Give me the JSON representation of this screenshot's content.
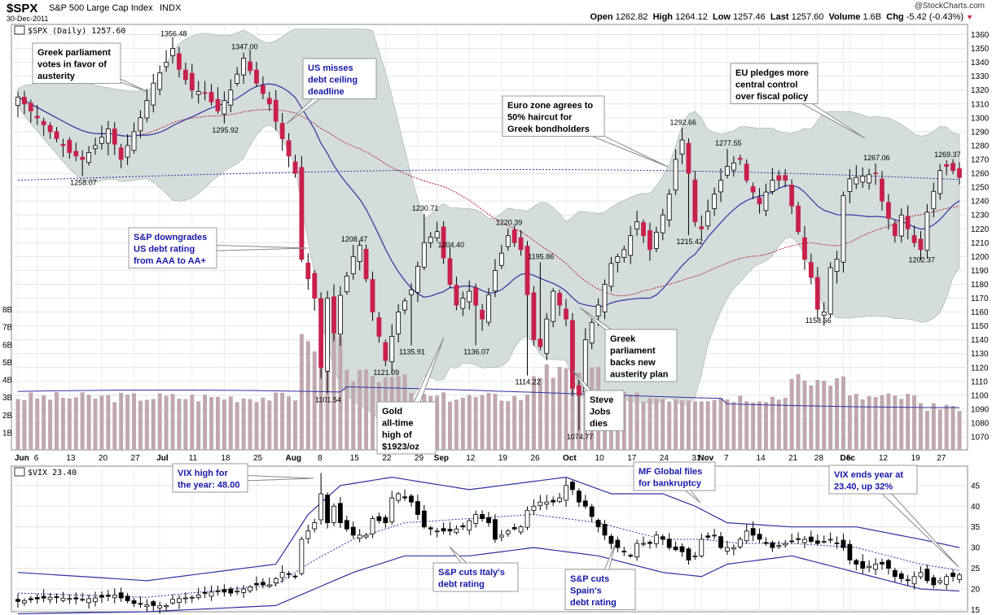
{
  "header": {
    "symbol": "$SPX",
    "name": "S&P 500 Large Cap Index",
    "exchange": "INDX",
    "date": "30-Dec-2011",
    "watermark": "@StockCharts.com",
    "ohlc": [
      {
        "label": "Open",
        "value": "1262.82"
      },
      {
        "label": "High",
        "value": "1264.12"
      },
      {
        "label": "Low",
        "value": "1257.46"
      },
      {
        "label": "Last",
        "value": "1257.60"
      },
      {
        "label": "Volume",
        "value": "1.6B"
      },
      {
        "label": "Chg",
        "value": "-5.42 (-0.43%)"
      }
    ]
  },
  "panels": {
    "spx_legend": "$SPX (Daily) 1257.60",
    "vix_legend": "$VIX 23.40"
  },
  "colors": {
    "up_candle": "#ffffff",
    "down_candle": "#c8204a",
    "vix_down": "#000000",
    "band_fill": "#d5dcdc",
    "ma_blue": "#3030a0",
    "ma_red": "#b02030",
    "volume_bar": "#c0a8ae",
    "annotation_blue": "#1818a8"
  },
  "chart_data": [
    {
      "type": "candlestick",
      "series_name": "$SPX (Daily)",
      "ylim": [
        1063,
        1365
      ],
      "y_ticks": [
        1070,
        1080,
        1090,
        1100,
        1110,
        1120,
        1130,
        1140,
        1150,
        1160,
        1170,
        1180,
        1190,
        1200,
        1210,
        1220,
        1230,
        1240,
        1250,
        1260,
        1270,
        1280,
        1290,
        1300,
        1310,
        1320,
        1330,
        1340,
        1350,
        1360
      ],
      "x_labels": [
        {
          "label": "Jun",
          "day": 0
        },
        {
          "label": "6",
          "day": 3
        },
        {
          "label": "13",
          "day": 8
        },
        {
          "label": "20",
          "day": 13
        },
        {
          "label": "27",
          "day": 18
        },
        {
          "label": "Jul",
          "day": 22
        },
        {
          "label": "11",
          "day": 27
        },
        {
          "label": "18",
          "day": 32
        },
        {
          "label": "25",
          "day": 37
        },
        {
          "label": "Aug",
          "day": 42
        },
        {
          "label": "8",
          "day": 47
        },
        {
          "label": "15",
          "day": 52
        },
        {
          "label": "22",
          "day": 57
        },
        {
          "label": "29",
          "day": 62
        },
        {
          "label": "Sep",
          "day": 65
        },
        {
          "label": "12",
          "day": 70
        },
        {
          "label": "19",
          "day": 75
        },
        {
          "label": "26",
          "day": 80
        },
        {
          "label": "Oct",
          "day": 85
        },
        {
          "label": "10",
          "day": 90
        },
        {
          "label": "17",
          "day": 95
        },
        {
          "label": "24",
          "day": 100
        },
        {
          "label": "31",
          "day": 105
        },
        {
          "label": "Nov",
          "day": 106
        },
        {
          "label": "7",
          "day": 110
        },
        {
          "label": "14",
          "day": 115
        },
        {
          "label": "21",
          "day": 120
        },
        {
          "label": "28",
          "day": 124
        },
        {
          "label": "Dec",
          "day": 128
        },
        {
          "label": "5",
          "day": 129
        },
        {
          "label": "12",
          "day": 134
        },
        {
          "label": "19",
          "day": 139
        },
        {
          "label": "27",
          "day": 143
        }
      ],
      "close_anchors": [
        [
          0,
          1315
        ],
        [
          2,
          1305
        ],
        [
          5,
          1290
        ],
        [
          8,
          1275
        ],
        [
          10,
          1270
        ],
        [
          12,
          1280
        ],
        [
          14,
          1292
        ],
        [
          16,
          1270
        ],
        [
          19,
          1300
        ],
        [
          21,
          1325
        ],
        [
          23,
          1340
        ],
        [
          24,
          1350
        ],
        [
          25,
          1335
        ],
        [
          27,
          1320
        ],
        [
          29,
          1318
        ],
        [
          31,
          1305
        ],
        [
          33,
          1320
        ],
        [
          35,
          1343
        ],
        [
          37,
          1325
        ],
        [
          39,
          1310
        ],
        [
          41,
          1285
        ],
        [
          43,
          1260
        ],
        [
          44,
          1198
        ],
        [
          46,
          1170
        ],
        [
          47,
          1120
        ],
        [
          48,
          1170
        ],
        [
          49,
          1145
        ],
        [
          50,
          1172
        ],
        [
          52,
          1200
        ],
        [
          53,
          1208
        ],
        [
          55,
          1160
        ],
        [
          57,
          1125
        ],
        [
          59,
          1160
        ],
        [
          61,
          1176
        ],
        [
          63,
          1210
        ],
        [
          65,
          1218
        ],
        [
          67,
          1180
        ],
        [
          68,
          1165
        ],
        [
          70,
          1175
        ],
        [
          72,
          1155
        ],
        [
          74,
          1190
        ],
        [
          76,
          1215
        ],
        [
          78,
          1205
        ],
        [
          80,
          1140
        ],
        [
          81,
          1135
        ],
        [
          83,
          1175
        ],
        [
          85,
          1155
        ],
        [
          86,
          1105
        ],
        [
          87,
          1100
        ],
        [
          88,
          1140
        ],
        [
          90,
          1165
        ],
        [
          92,
          1195
        ],
        [
          94,
          1205
        ],
        [
          96,
          1225
        ],
        [
          98,
          1205
        ],
        [
          100,
          1230
        ],
        [
          101,
          1245
        ],
        [
          102,
          1270
        ],
        [
          103,
          1284
        ],
        [
          104,
          1260
        ],
        [
          105,
          1225
        ],
        [
          106,
          1220
        ],
        [
          108,
          1245
        ],
        [
          110,
          1265
        ],
        [
          112,
          1270
        ],
        [
          113,
          1255
        ],
        [
          115,
          1238
        ],
        [
          117,
          1255
        ],
        [
          119,
          1255
        ],
        [
          121,
          1218
        ],
        [
          122,
          1198
        ],
        [
          123,
          1185
        ],
        [
          124,
          1162
        ],
        [
          125,
          1160
        ],
        [
          126,
          1192
        ],
        [
          127,
          1198
        ],
        [
          128,
          1244
        ],
        [
          129,
          1256
        ],
        [
          131,
          1258
        ],
        [
          133,
          1260
        ],
        [
          134,
          1240
        ],
        [
          136,
          1215
        ],
        [
          137,
          1230
        ],
        [
          139,
          1210
        ],
        [
          140,
          1205
        ],
        [
          141,
          1232
        ],
        [
          143,
          1262
        ],
        [
          144,
          1265
        ],
        [
          145,
          1262
        ],
        [
          146,
          1257
        ]
      ],
      "price_labels": [
        {
          "text": "1356.48",
          "day": 24,
          "value": 1356.48,
          "pos": "above"
        },
        {
          "text": "1347.00",
          "day": 35,
          "value": 1347,
          "pos": "above"
        },
        {
          "text": "1295.92",
          "day": 32,
          "value": 1295.92,
          "pos": "below"
        },
        {
          "text": "1258.07",
          "day": 10,
          "value": 1258.07,
          "pos": "below"
        },
        {
          "text": "1208.47",
          "day": 52,
          "value": 1208.47,
          "pos": "above"
        },
        {
          "text": "1101.54",
          "day": 48,
          "value": 1101.54,
          "pos": "below"
        },
        {
          "text": "1121.09",
          "day": 57,
          "value": 1121.09,
          "pos": "below"
        },
        {
          "text": "1135.91",
          "day": 61,
          "value": 1135.91,
          "pos": "below"
        },
        {
          "text": "1230.71",
          "day": 63,
          "value": 1230.71,
          "pos": "above"
        },
        {
          "text": "1204.40",
          "day": 67,
          "value": 1204.4,
          "pos": "above"
        },
        {
          "text": "1136.07",
          "day": 71,
          "value": 1136.07,
          "pos": "below"
        },
        {
          "text": "1220.39",
          "day": 76,
          "value": 1220.39,
          "pos": "above"
        },
        {
          "text": "1195.86",
          "day": 81,
          "value": 1195.86,
          "pos": "above"
        },
        {
          "text": "1114.22",
          "day": 79,
          "value": 1114.22,
          "pos": "below"
        },
        {
          "text": "1074.77",
          "day": 87,
          "value": 1074.77,
          "pos": "below"
        },
        {
          "text": "1292.66",
          "day": 103,
          "value": 1292.66,
          "pos": "above"
        },
        {
          "text": "1215.42",
          "day": 104,
          "value": 1215.42,
          "pos": "below"
        },
        {
          "text": "1277.55",
          "day": 110,
          "value": 1277.55,
          "pos": "above"
        },
        {
          "text": "1158.66",
          "day": 124,
          "value": 1158.66,
          "pos": "below"
        },
        {
          "text": "1267.06",
          "day": 133,
          "value": 1267.06,
          "pos": "above"
        },
        {
          "text": "1202.37",
          "day": 140,
          "value": 1202.37,
          "pos": "below"
        },
        {
          "text": "1269.37",
          "day": 144,
          "value": 1269.37,
          "pos": "above"
        }
      ],
      "volume_axis": {
        "ticks": [
          "1B",
          "2B",
          "3B",
          "4B",
          "5B",
          "6B",
          "7B",
          "8B"
        ]
      }
    },
    {
      "type": "candlestick",
      "series_name": "$VIX",
      "ylim": [
        14.5,
        48.5
      ],
      "y_ticks": [
        15,
        20,
        25,
        30,
        35,
        40,
        45
      ],
      "close_anchors": [
        [
          0,
          17
        ],
        [
          5,
          18
        ],
        [
          10,
          17.5
        ],
        [
          13,
          18
        ],
        [
          15,
          18.5
        ],
        [
          18,
          16.5
        ],
        [
          21,
          16
        ],
        [
          23,
          16
        ],
        [
          24,
          17.5
        ],
        [
          27,
          18
        ],
        [
          29,
          19
        ],
        [
          31,
          19.5
        ],
        [
          33,
          19
        ],
        [
          35,
          20
        ],
        [
          37,
          21
        ],
        [
          39,
          21
        ],
        [
          41,
          24
        ],
        [
          43,
          23
        ],
        [
          44,
          32
        ],
        [
          46,
          36
        ],
        [
          47,
          43
        ],
        [
          48,
          36
        ],
        [
          49,
          40
        ],
        [
          50,
          36
        ],
        [
          52,
          33
        ],
        [
          54,
          33
        ],
        [
          55,
          37
        ],
        [
          57,
          36
        ],
        [
          58,
          42
        ],
        [
          59,
          43
        ],
        [
          61,
          41
        ],
        [
          63,
          35
        ],
        [
          65,
          34
        ],
        [
          67,
          34
        ],
        [
          69,
          35
        ],
        [
          71,
          38
        ],
        [
          73,
          36
        ],
        [
          74,
          32
        ],
        [
          76,
          34
        ],
        [
          78,
          35
        ],
        [
          79,
          39
        ],
        [
          81,
          41
        ],
        [
          83,
          41
        ],
        [
          84,
          42
        ],
        [
          85,
          45
        ],
        [
          86,
          44
        ],
        [
          87,
          41
        ],
        [
          88,
          40
        ],
        [
          90,
          35
        ],
        [
          92,
          31
        ],
        [
          94,
          29
        ],
        [
          95,
          28
        ],
        [
          96,
          31
        ],
        [
          98,
          31
        ],
        [
          99,
          33
        ],
        [
          100,
          32
        ],
        [
          101,
          30
        ],
        [
          103,
          29
        ],
        [
          104,
          27
        ],
        [
          105,
          28
        ],
        [
          106,
          32
        ],
        [
          108,
          33
        ],
        [
          109,
          30
        ],
        [
          111,
          30
        ],
        [
          113,
          34
        ],
        [
          115,
          32
        ],
        [
          117,
          30
        ],
        [
          119,
          31
        ],
        [
          121,
          32
        ],
        [
          122,
          32
        ],
        [
          124,
          31
        ],
        [
          126,
          32
        ],
        [
          128,
          30
        ],
        [
          129,
          27
        ],
        [
          131,
          25
        ],
        [
          133,
          26
        ],
        [
          134,
          26
        ],
        [
          135,
          25
        ],
        [
          136,
          23
        ],
        [
          138,
          22
        ],
        [
          140,
          24
        ],
        [
          141,
          22
        ],
        [
          142,
          21
        ],
        [
          143,
          22
        ],
        [
          144,
          23
        ],
        [
          145,
          23
        ],
        [
          146,
          23.4
        ]
      ],
      "bb_upper_anchors": [
        [
          0,
          24
        ],
        [
          20,
          22
        ],
        [
          40,
          26
        ],
        [
          45,
          38
        ],
        [
          50,
          45
        ],
        [
          58,
          47
        ],
        [
          70,
          44
        ],
        [
          85,
          47
        ],
        [
          92,
          43
        ],
        [
          100,
          43
        ],
        [
          105,
          40
        ],
        [
          110,
          36
        ],
        [
          120,
          35
        ],
        [
          130,
          35
        ],
        [
          140,
          32
        ],
        [
          146,
          30
        ]
      ],
      "bb_lower_anchors": [
        [
          0,
          14
        ],
        [
          20,
          14.5
        ],
        [
          40,
          16
        ],
        [
          46,
          20
        ],
        [
          52,
          24
        ],
        [
          60,
          28
        ],
        [
          70,
          28
        ],
        [
          80,
          30
        ],
        [
          90,
          28
        ],
        [
          100,
          24
        ],
        [
          106,
          23
        ],
        [
          110,
          26
        ],
        [
          120,
          28
        ],
        [
          130,
          24
        ],
        [
          140,
          20
        ],
        [
          146,
          19.5
        ]
      ],
      "ma_anchors": [
        [
          0,
          19
        ],
        [
          20,
          18
        ],
        [
          40,
          21
        ],
        [
          46,
          27
        ],
        [
          52,
          32
        ],
        [
          60,
          36
        ],
        [
          70,
          37
        ],
        [
          80,
          38
        ],
        [
          90,
          36
        ],
        [
          100,
          32
        ],
        [
          106,
          32
        ],
        [
          112,
          31
        ],
        [
          120,
          31
        ],
        [
          130,
          30
        ],
        [
          140,
          26
        ],
        [
          146,
          24.5
        ]
      ]
    }
  ],
  "annotations": [
    {
      "lines": [
        "Greek parliament",
        "votes in favor of",
        "austerity"
      ],
      "color": "black"
    },
    {
      "lines": [
        "US misses",
        "debt ceiling",
        "deadline"
      ],
      "color": "blue"
    },
    {
      "lines": [
        "Euro zone agrees to",
        "50% haircut for",
        "Greek bondholders"
      ],
      "color": "black"
    },
    {
      "lines": [
        "EU pledges more",
        "central control",
        "over fiscal policy"
      ],
      "color": "black"
    },
    {
      "lines": [
        "S&P downgrades",
        "US debt rating",
        "from AAA to AA+"
      ],
      "color": "blue"
    },
    {
      "lines": [
        "Gold",
        "all-time",
        "high of",
        "$1923/oz"
      ],
      "color": "black"
    },
    {
      "lines": [
        "Greek",
        "parliament",
        "backs new",
        "austerity plan"
      ],
      "color": "black"
    },
    {
      "lines": [
        "Steve",
        "Jobs",
        "dies"
      ],
      "color": "black"
    },
    {
      "lines": [
        "VIX high for",
        "the year: 48.00"
      ],
      "color": "blue"
    },
    {
      "lines": [
        "MF Global files",
        "for bankruptcy"
      ],
      "color": "blue"
    },
    {
      "lines": [
        "VIX ends year at",
        "23.40, up 32%"
      ],
      "color": "blue"
    },
    {
      "lines": [
        "S&P cuts Italy's",
        "debt rating"
      ],
      "color": "blue"
    },
    {
      "lines": [
        "S&P cuts",
        "Spain's",
        "debt rating"
      ],
      "color": "blue"
    }
  ]
}
